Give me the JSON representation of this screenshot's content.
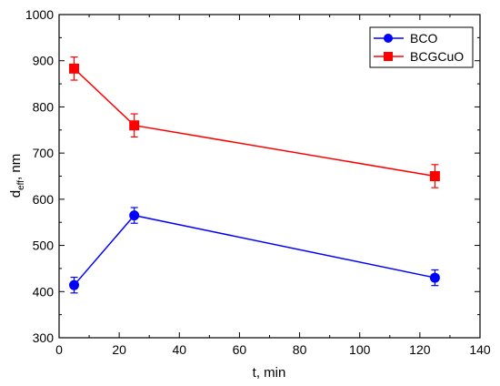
{
  "chart_data": {
    "type": "line",
    "xlabel": "t, min",
    "ylabel": "d",
    "ylabel_subscript": "eff",
    "ylabel_suffix": ", nm",
    "xlim": [
      0,
      140
    ],
    "ylim": [
      300,
      1000
    ],
    "xticks": [
      "0",
      "20",
      "40",
      "60",
      "80",
      "100",
      "120",
      "140"
    ],
    "yticks": [
      "300",
      "400",
      "500",
      "600",
      "700",
      "800",
      "900",
      "1000"
    ],
    "grid": false,
    "legend_position": "top-right",
    "series": [
      {
        "name": "BCO",
        "color": "#0000ff",
        "marker": "circle",
        "x": [
          5,
          25,
          125
        ],
        "y": [
          414,
          565,
          430
        ],
        "error": [
          17,
          17,
          17
        ]
      },
      {
        "name": "BCGCuO",
        "color": "#ff0000",
        "marker": "square",
        "x": [
          5,
          25,
          125
        ],
        "y": [
          883,
          760,
          650
        ],
        "error": [
          25,
          25,
          25
        ]
      }
    ]
  }
}
